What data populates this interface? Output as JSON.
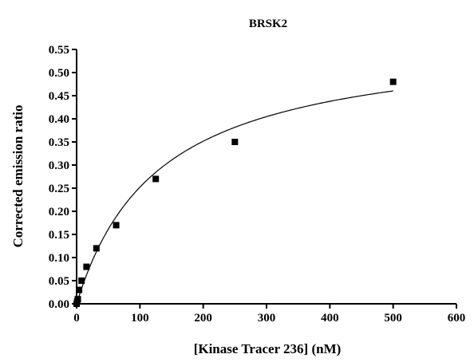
{
  "chart_data": {
    "type": "scatter",
    "title": "BRSK2",
    "xlabel": "[Kinase Tracer 236] (nM)",
    "ylabel": "Corrected emission ratio",
    "xlim": [
      0,
      600
    ],
    "ylim": [
      0,
      0.55
    ],
    "xticks": [
      "0",
      "100",
      "200",
      "300",
      "400",
      "500",
      "600"
    ],
    "xtick_values": [
      0,
      100,
      200,
      300,
      400,
      500,
      600
    ],
    "yticks": [
      "0.00",
      "0.05",
      "0.10",
      "0.15",
      "0.20",
      "0.25",
      "0.30",
      "0.35",
      "0.40",
      "0.45",
      "0.50",
      "0.55"
    ],
    "ytick_values": [
      0,
      0.05,
      0.1,
      0.15,
      0.2,
      0.25,
      0.3,
      0.35,
      0.4,
      0.45,
      0.5,
      0.55
    ],
    "grid": false,
    "legend": "none",
    "series": [
      {
        "marker": "square",
        "color": "#000000",
        "x": [
          0,
          0.98,
          1.95,
          3.9,
          7.8,
          15.6,
          31.25,
          62.5,
          125,
          250,
          500
        ],
        "y": [
          0.0,
          0.005,
          0.01,
          0.03,
          0.05,
          0.08,
          0.12,
          0.17,
          0.27,
          0.35,
          0.48
        ]
      }
    ],
    "fit": {
      "model": "one-site binding",
      "bmax": 0.58,
      "kd": 130,
      "x_range": [
        0,
        500
      ]
    }
  }
}
